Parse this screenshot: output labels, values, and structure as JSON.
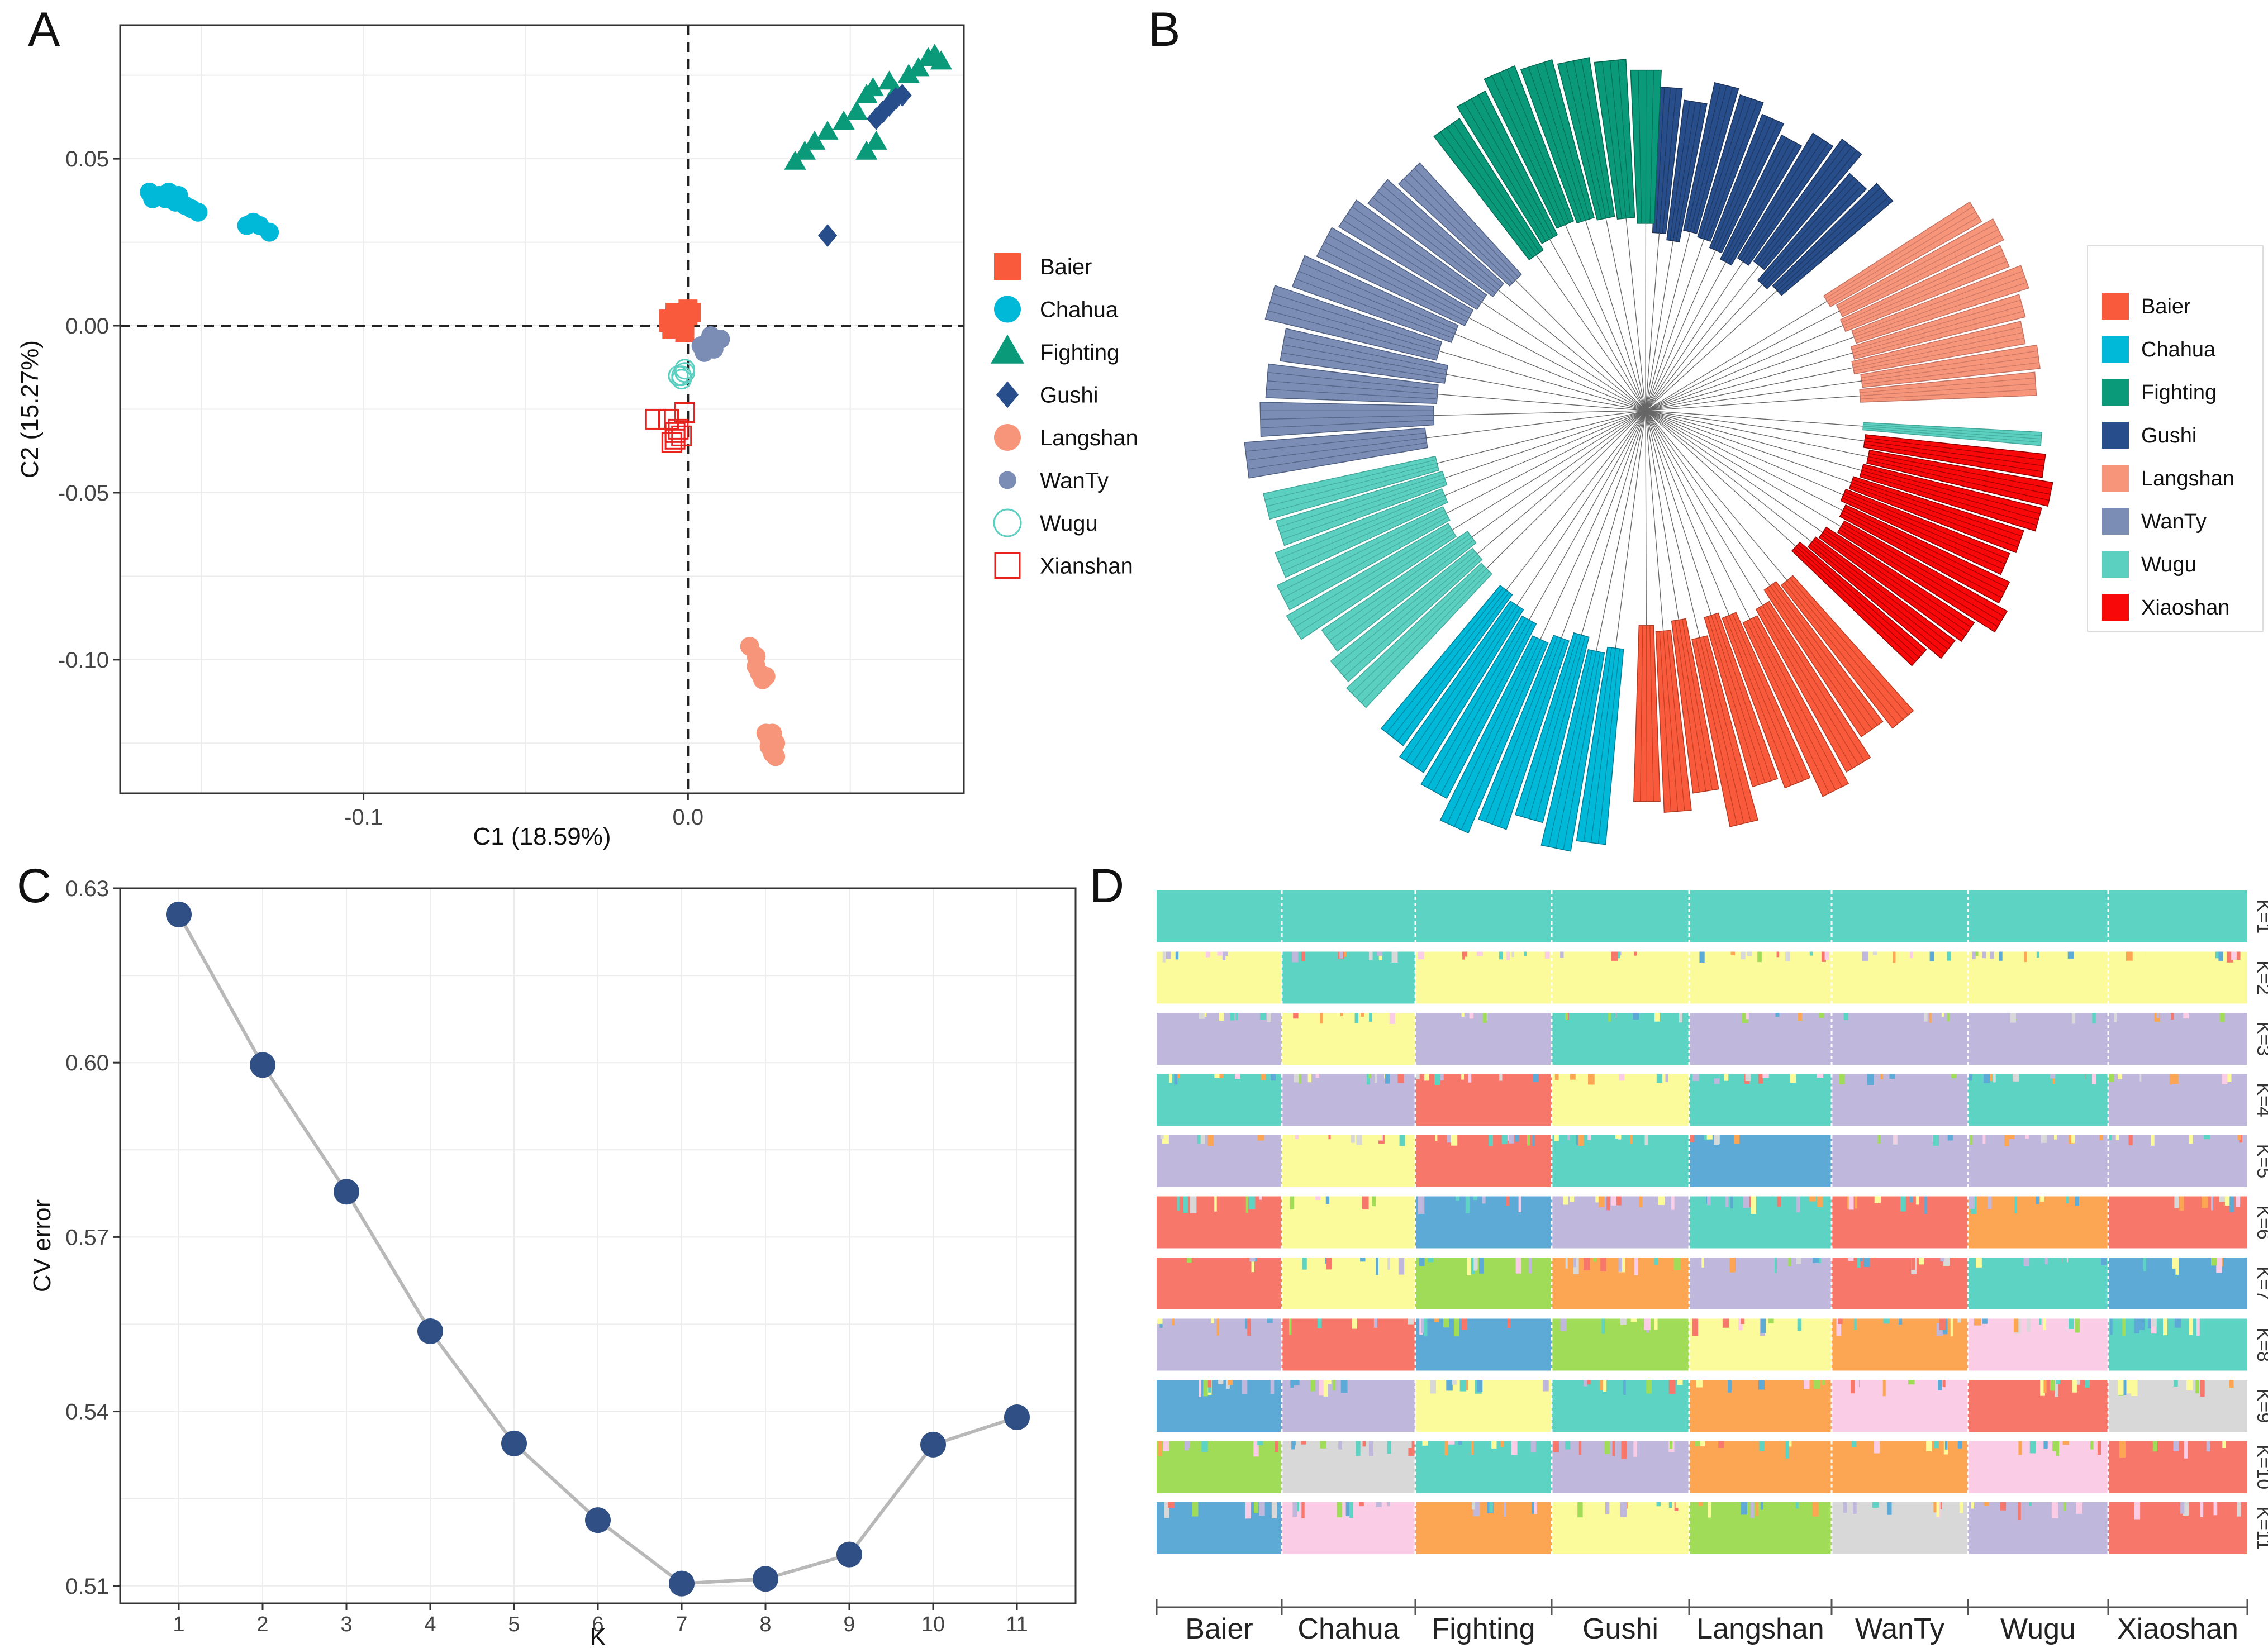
{
  "colors": {
    "Baier": "#fa5a3c",
    "Chahua": "#00b8d8",
    "Fighting": "#0a9a7a",
    "Gushi": "#274d8a",
    "Langshan": "#f7957a",
    "WanTy": "#7b8db4",
    "Wugu": "#5bd0c0",
    "Xianshan": "#e8221e",
    "Xiaoshan": "#f80808",
    "k_teal": "#5dd3c3",
    "k_yellow": "#fbfb9b",
    "k_purple": "#bfb7dc",
    "k_red": "#f7776a",
    "k_blue": "#5eaad6",
    "k_orange": "#fca653",
    "k_green": "#a0dc58",
    "k_pink": "#fbcce6",
    "k_grey": "#d8d8d8",
    "k_magenta": "#d27bc1",
    "k_mint": "#bbe9c6",
    "navy_point": "#2f4f85"
  },
  "panel_labels": {
    "a": "A",
    "b": "B",
    "c": "C",
    "d": "D"
  },
  "chart_data": [
    {
      "panel": "A",
      "type": "scatter",
      "xlabel": "C1 (18.59%)",
      "ylabel": "C2 (15.27%)",
      "xlim": [
        -0.175,
        0.085
      ],
      "ylim": [
        -0.14,
        0.09
      ],
      "xticks": [
        "-0.1",
        "0.0"
      ],
      "yticks": [
        "0.05",
        "0.00",
        "-0.05",
        "-0.10"
      ],
      "ref_lines": {
        "x": 0,
        "y": 0
      },
      "legend": [
        "Baier",
        "Chahua",
        "Fighting",
        "Gushi",
        "Langshan",
        "WanTy",
        "Wugu",
        "Xianshan"
      ],
      "series": [
        {
          "name": "Chahua",
          "shape": "circle",
          "points": [
            [
              -0.166,
              0.04
            ],
            [
              -0.165,
              0.038
            ],
            [
              -0.163,
              0.039
            ],
            [
              -0.161,
              0.038
            ],
            [
              -0.16,
              0.04
            ],
            [
              -0.158,
              0.037
            ],
            [
              -0.157,
              0.039
            ],
            [
              -0.155,
              0.036
            ],
            [
              -0.153,
              0.035
            ],
            [
              -0.151,
              0.034
            ],
            [
              -0.136,
              0.03
            ],
            [
              -0.134,
              0.031
            ],
            [
              -0.132,
              0.03
            ],
            [
              -0.129,
              0.028
            ]
          ]
        },
        {
          "name": "Fighting",
          "shape": "triangle",
          "points": [
            [
              0.033,
              0.049
            ],
            [
              0.036,
              0.052
            ],
            [
              0.039,
              0.055
            ],
            [
              0.043,
              0.058
            ],
            [
              0.048,
              0.061
            ],
            [
              0.052,
              0.064
            ],
            [
              0.055,
              0.069
            ],
            [
              0.057,
              0.071
            ],
            [
              0.062,
              0.073
            ],
            [
              0.064,
              0.07
            ],
            [
              0.068,
              0.075
            ],
            [
              0.071,
              0.077
            ],
            [
              0.074,
              0.08
            ],
            [
              0.076,
              0.081
            ],
            [
              0.078,
              0.079
            ],
            [
              0.055,
              0.052
            ],
            [
              0.058,
              0.055
            ]
          ]
        },
        {
          "name": "Gushi",
          "shape": "diamond",
          "points": [
            [
              0.043,
              0.027
            ],
            [
              0.058,
              0.062
            ],
            [
              0.06,
              0.064
            ],
            [
              0.062,
              0.066
            ],
            [
              0.064,
              0.068
            ],
            [
              0.066,
              0.069
            ]
          ]
        },
        {
          "name": "Baier",
          "shape": "square",
          "points": [
            [
              -0.006,
              0.002
            ],
            [
              -0.004,
              0.003
            ],
            [
              -0.002,
              0.002
            ],
            [
              0.0,
              0.003
            ],
            [
              -0.005,
              -0.001
            ],
            [
              -0.003,
              0.0
            ],
            [
              0.0,
              0.005
            ],
            [
              -0.004,
              0.004
            ],
            [
              -0.001,
              -0.002
            ],
            [
              -0.006,
              0.001
            ],
            [
              0.001,
              0.004
            ]
          ]
        },
        {
          "name": "WanTy",
          "shape": "circle",
          "points": [
            [
              0.004,
              -0.006
            ],
            [
              0.006,
              -0.005
            ],
            [
              0.008,
              -0.007
            ],
            [
              0.01,
              -0.004
            ],
            [
              0.007,
              -0.003
            ],
            [
              0.005,
              -0.008
            ]
          ]
        },
        {
          "name": "Wugu",
          "shape": "open-circle",
          "points": [
            [
              -0.002,
              -0.015
            ],
            [
              -0.001,
              -0.014
            ],
            [
              -0.002,
              -0.016
            ],
            [
              -0.003,
              -0.015
            ],
            [
              -0.001,
              -0.013
            ]
          ]
        },
        {
          "name": "Xianshan",
          "shape": "open-square",
          "points": [
            [
              -0.01,
              -0.028
            ],
            [
              -0.006,
              -0.028
            ],
            [
              -0.004,
              -0.032
            ],
            [
              -0.004,
              -0.034
            ],
            [
              -0.002,
              -0.033
            ],
            [
              -0.001,
              -0.026
            ],
            [
              -0.003,
              -0.031
            ],
            [
              -0.005,
              -0.035
            ]
          ]
        },
        {
          "name": "Langshan",
          "shape": "circle",
          "points": [
            [
              0.019,
              -0.096
            ],
            [
              0.021,
              -0.099
            ],
            [
              0.021,
              -0.102
            ],
            [
              0.022,
              -0.104
            ],
            [
              0.023,
              -0.106
            ],
            [
              0.024,
              -0.105
            ],
            [
              0.024,
              -0.122
            ],
            [
              0.025,
              -0.124
            ],
            [
              0.025,
              -0.126
            ],
            [
              0.026,
              -0.128
            ],
            [
              0.027,
              -0.125
            ],
            [
              0.027,
              -0.129
            ],
            [
              0.026,
              -0.122
            ]
          ]
        }
      ]
    },
    {
      "panel": "B",
      "type": "tree",
      "legend": [
        "Baier",
        "Chahua",
        "Fighting",
        "Gushi",
        "Langshan",
        "WanTy",
        "Wugu",
        "Xiaoshan"
      ]
    },
    {
      "panel": "C",
      "type": "line",
      "xlabel": "K",
      "ylabel": "CV error",
      "x": [
        1,
        2,
        3,
        4,
        5,
        6,
        7,
        8,
        9,
        10,
        11
      ],
      "y": [
        0.6255,
        0.5996,
        0.5778,
        0.5538,
        0.5345,
        0.5213,
        0.5104,
        0.5112,
        0.5154,
        0.5343,
        0.539
      ],
      "ylim": [
        0.507,
        0.63
      ],
      "yticks": [
        "0.51",
        "0.54",
        "0.57",
        "0.60",
        "0.63"
      ]
    },
    {
      "panel": "D",
      "type": "admixture",
      "populations": [
        "Baier",
        "Chahua",
        "Fighting",
        "Gushi",
        "Langshan",
        "WanTy",
        "Wugu",
        "Xiaoshan"
      ],
      "rows": [
        {
          "label": "K=1",
          "blocks": [
            "k_teal",
            "k_teal",
            "k_teal",
            "k_teal",
            "k_teal",
            "k_teal",
            "k_teal",
            "k_teal"
          ]
        },
        {
          "label": "K=2",
          "blocks": [
            "k_yellow",
            "k_teal",
            "k_yellow",
            "k_yellow",
            "k_yellow",
            "k_yellow",
            "k_yellow",
            "k_yellow"
          ]
        },
        {
          "label": "K=3",
          "blocks": [
            "k_purple",
            "k_yellow",
            "k_purple",
            "k_teal",
            "k_purple",
            "k_purple",
            "k_purple",
            "k_purple"
          ]
        },
        {
          "label": "K=4",
          "blocks": [
            "k_teal",
            "k_purple",
            "k_red",
            "k_yellow",
            "k_teal",
            "k_purple",
            "k_teal",
            "k_purple"
          ]
        },
        {
          "label": "K=5",
          "blocks": [
            "k_purple",
            "k_yellow",
            "k_red",
            "k_teal",
            "k_blue",
            "k_purple",
            "k_purple",
            "k_purple"
          ]
        },
        {
          "label": "K=6",
          "blocks": [
            "k_red",
            "k_yellow",
            "k_blue",
            "k_purple",
            "k_teal",
            "k_red",
            "k_orange",
            "k_red"
          ]
        },
        {
          "label": "K=7",
          "blocks": [
            "k_red",
            "k_yellow",
            "k_green",
            "k_orange",
            "k_purple",
            "k_red",
            "k_teal",
            "k_blue"
          ]
        },
        {
          "label": "K=8",
          "blocks": [
            "k_purple",
            "k_red",
            "k_blue",
            "k_green",
            "k_yellow",
            "k_orange",
            "k_pink",
            "k_teal"
          ]
        },
        {
          "label": "K=9",
          "blocks": [
            "k_blue",
            "k_purple",
            "k_yellow",
            "k_teal",
            "k_orange",
            "k_pink",
            "k_red",
            "k_grey"
          ]
        },
        {
          "label": "K=10",
          "blocks": [
            "k_green",
            "k_grey",
            "k_teal",
            "k_purple",
            "k_orange",
            "k_orange",
            "k_pink",
            "k_red"
          ]
        },
        {
          "label": "K=11",
          "blocks": [
            "k_blue",
            "k_pink",
            "k_orange",
            "k_yellow",
            "k_green",
            "k_grey",
            "k_purple",
            "k_red"
          ]
        }
      ]
    }
  ]
}
